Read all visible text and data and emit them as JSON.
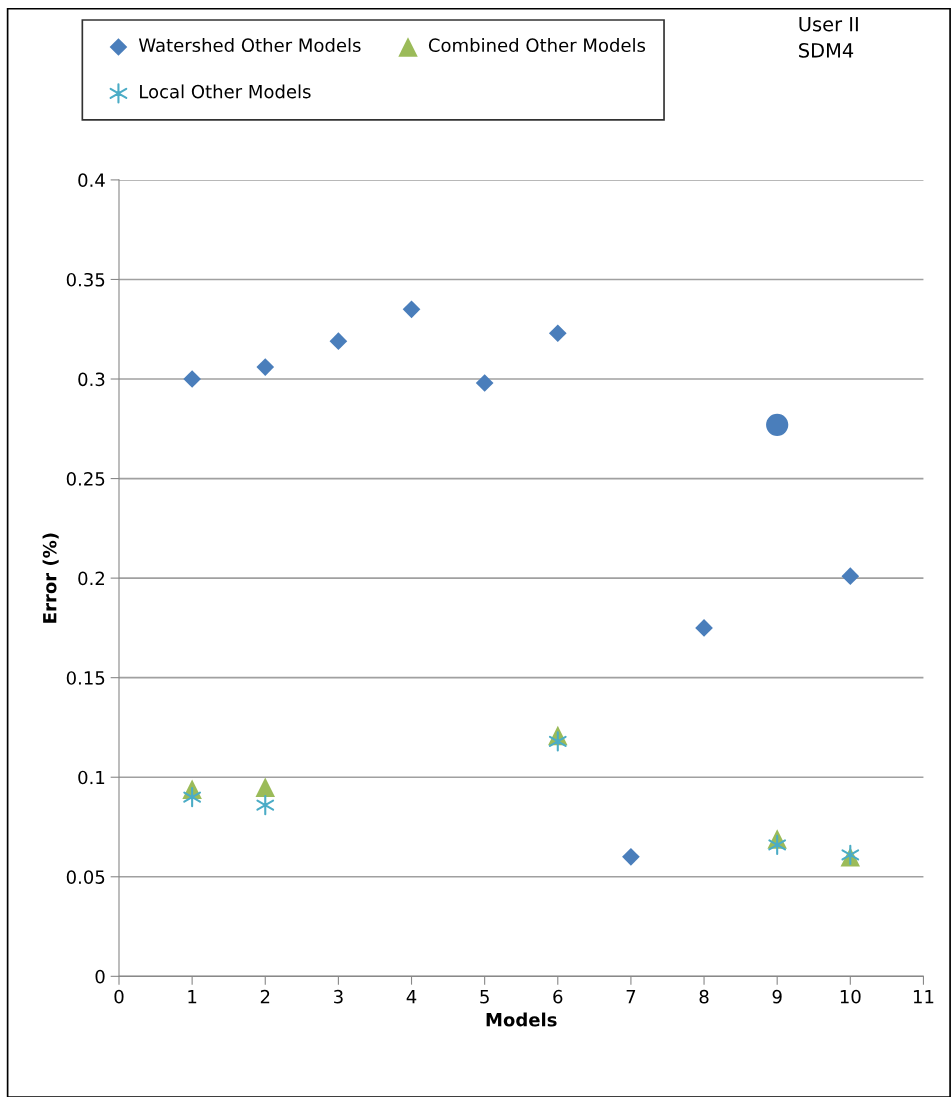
{
  "chart_data": {
    "type": "scatter",
    "xlabel": "Models",
    "ylabel": "Error (%)",
    "annotations": [
      "User II\nSDM4"
    ],
    "x": [
      1,
      2,
      3,
      4,
      5,
      6,
      7,
      8,
      9,
      10
    ],
    "series": [
      {
        "name": "Watershed Other Models",
        "color": "#4a7ebb",
        "marker": "diamond",
        "values": [
          0.3,
          0.306,
          0.319,
          0.335,
          0.298,
          0.323,
          0.06,
          0.175,
          null,
          0.201
        ]
      },
      {
        "name": "Combined Other Models",
        "color": "#9bbb59",
        "marker": "triangle",
        "values": [
          0.094,
          0.095,
          null,
          null,
          null,
          0.121,
          null,
          null,
          0.069,
          0.06
        ]
      },
      {
        "name": "Local Other Models",
        "color": "#4bacc6",
        "marker": "cross",
        "values": [
          0.09,
          0.086,
          null,
          null,
          null,
          0.118,
          null,
          null,
          0.066,
          0.061
        ]
      },
      {
        "color": "#4a7ebb",
        "marker": "circle",
        "x": [
          9
        ],
        "values": [
          0.277
        ]
      }
    ],
    "xlim": [
      0,
      11
    ],
    "xticks": [
      0,
      1,
      2,
      3,
      4,
      5,
      6,
      7,
      8,
      9,
      10,
      11
    ],
    "ylim": [
      0,
      0.4
    ],
    "yticks": [
      {
        "value": 0,
        "label": "0"
      },
      0.05,
      0.1,
      0.15,
      0.2,
      0.25,
      0.3,
      0.35,
      0.4
    ],
    "grid": "y",
    "legend": "top"
  }
}
